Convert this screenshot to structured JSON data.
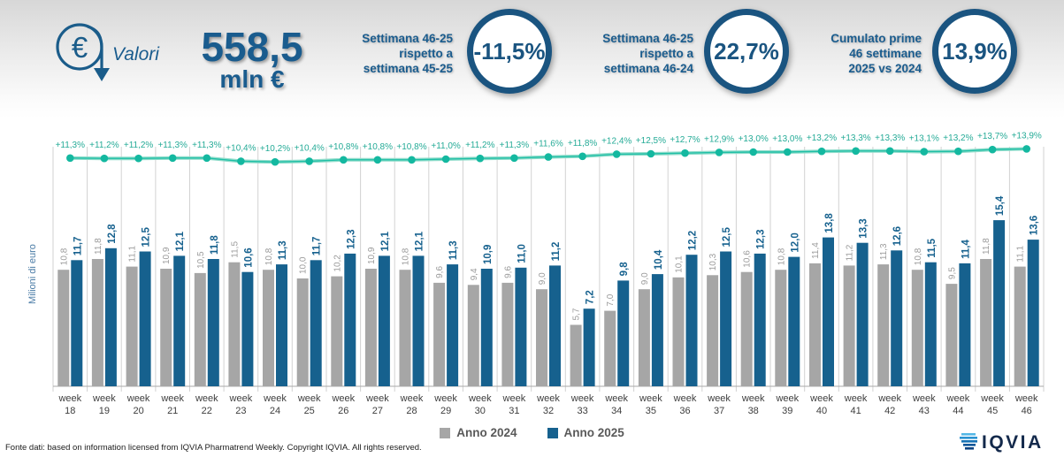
{
  "header": {
    "valori_label": "Valori",
    "total": {
      "value": "558,5",
      "unit": "mln €"
    },
    "kpis": [
      {
        "line1": "Settimana 46-25",
        "line2": "rispetto a",
        "line3": "settimana 45-25",
        "value": "-11,5%"
      },
      {
        "line1": "Settimana 46-25",
        "line2": "rispetto a",
        "line3": "settimana 46-24",
        "value": "22,7%"
      },
      {
        "line1": "Cumulato prime",
        "line2": "46 settimane",
        "line3": "2025 vs 2024",
        "value": "13,9%"
      }
    ]
  },
  "chart_data": {
    "type": "grouped-bar+line",
    "x_tick_prefix": "week",
    "categories": [
      "18",
      "19",
      "20",
      "21",
      "22",
      "23",
      "24",
      "25",
      "26",
      "27",
      "28",
      "29",
      "30",
      "31",
      "32",
      "33",
      "34",
      "35",
      "36",
      "37",
      "38",
      "39",
      "40",
      "41",
      "42",
      "43",
      "44",
      "45",
      "46"
    ],
    "series": [
      {
        "name": "Anno 2024",
        "color": "#a6a6a6",
        "values": [
          10.8,
          11.8,
          11.1,
          10.9,
          10.5,
          11.5,
          10.8,
          10.0,
          10.2,
          10.9,
          10.8,
          9.6,
          9.4,
          9.6,
          9.0,
          5.7,
          7.0,
          9.0,
          10.1,
          10.3,
          10.6,
          10.8,
          11.4,
          11.2,
          11.3,
          10.8,
          9.5,
          11.8,
          11.1
        ]
      },
      {
        "name": "Anno 2025",
        "color": "#16618e",
        "values": [
          11.7,
          12.8,
          12.5,
          12.1,
          11.8,
          10.6,
          11.3,
          11.7,
          12.3,
          12.1,
          12.1,
          11.3,
          10.9,
          11.0,
          11.2,
          7.2,
          9.8,
          10.4,
          12.2,
          12.5,
          12.3,
          12.0,
          13.8,
          13.3,
          12.6,
          11.5,
          11.4,
          15.4,
          13.6
        ]
      }
    ],
    "line_series": {
      "name": "Cumulato % 2025 vs 2024",
      "color": "#14b8a0",
      "values": [
        11.3,
        11.2,
        11.2,
        11.3,
        11.3,
        10.4,
        10.2,
        10.4,
        10.8,
        10.8,
        10.8,
        11.0,
        11.2,
        11.3,
        11.6,
        11.8,
        12.4,
        12.5,
        12.7,
        12.9,
        13.0,
        13.0,
        13.2,
        13.3,
        13.3,
        13.1,
        13.2,
        13.7,
        13.9
      ]
    },
    "ylabel": "Milioni di euro",
    "grid": "vertical",
    "legend_position": "bottom"
  },
  "legend": [
    {
      "label": "Anno 2024",
      "color": "#a6a6a6"
    },
    {
      "label": "Anno 2025",
      "color": "#16618e"
    }
  ],
  "footer": {
    "source": "Fonte dati: based on information licensed from IQVIA Pharmatrend Weekly. Copyright IQVIA. All rights reserved.",
    "logo_text": "IQVIA"
  }
}
